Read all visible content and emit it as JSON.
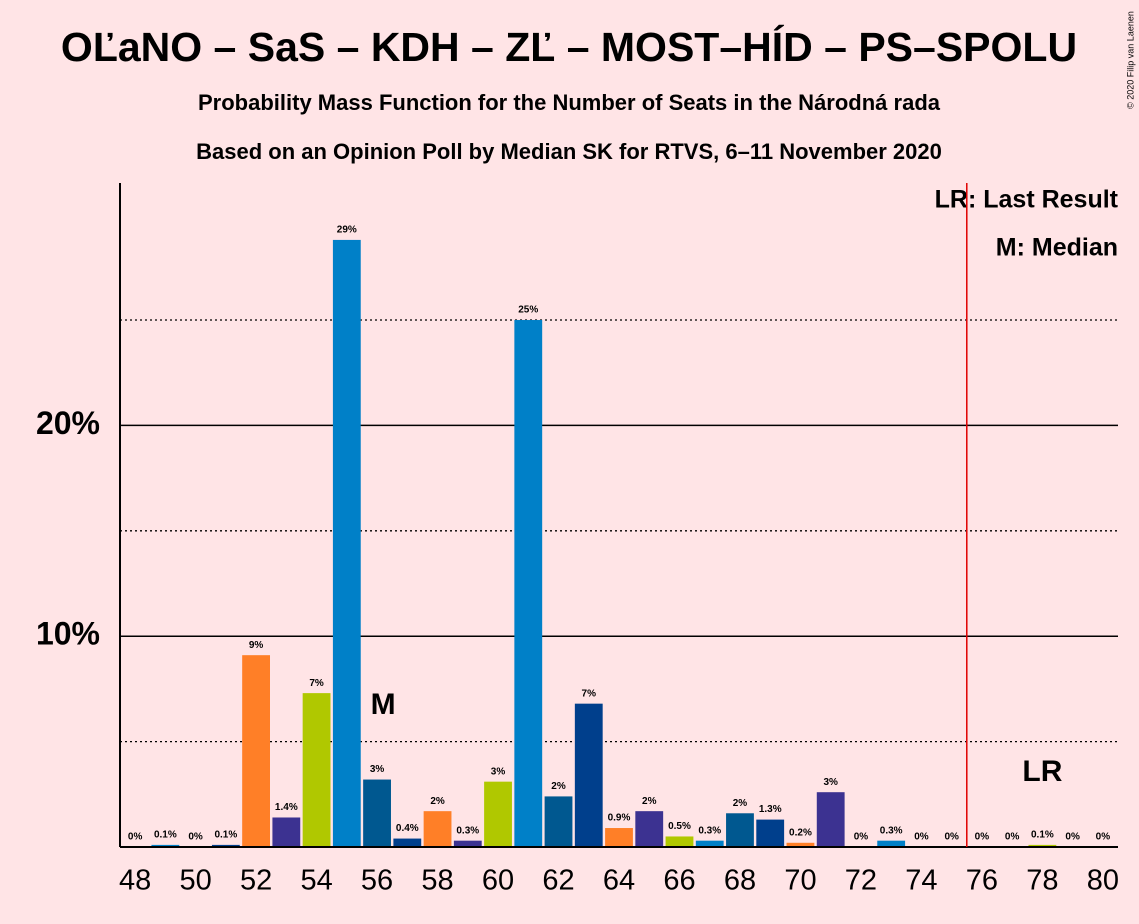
{
  "chart_data": {
    "type": "bar",
    "title": "OĽaNO – SaS – KDH – ZĽ – MOST–HÍD – PS–SPOLU",
    "subtitle": "Probability Mass Function for the Number of Seats in the Národná rada",
    "subtitle2": "Based on an Opinion Poll by Median SK for RTVS, 6–11 November 2020",
    "copyright": "© 2020 Filip van Laenen",
    "legend": [
      "LR: Last Result",
      "M: Median"
    ],
    "x": [
      48,
      49,
      50,
      51,
      52,
      53,
      54,
      55,
      56,
      57,
      58,
      59,
      60,
      61,
      62,
      63,
      64,
      65,
      66,
      67,
      68,
      69,
      70,
      71,
      72,
      73,
      74,
      75,
      76,
      77,
      78,
      79,
      80
    ],
    "values": [
      0,
      0.1,
      0,
      0.1,
      9.1,
      1.4,
      7.3,
      28.8,
      3.2,
      0.4,
      1.7,
      0.3,
      3.1,
      25.0,
      2.4,
      6.8,
      0.9,
      1.7,
      0.5,
      0.3,
      1.6,
      1.3,
      0.2,
      2.6,
      0,
      0.3,
      0,
      0,
      0,
      0,
      0.1,
      0,
      0
    ],
    "value_labels": [
      "0%",
      "0.1%",
      "0%",
      "0.1%",
      "9%",
      "1.4%",
      "7%",
      "29%",
      "3%",
      "0.4%",
      "2%",
      "0.3%",
      "3%",
      "25%",
      "2%",
      "7%",
      "0.9%",
      "2%",
      "0.5%",
      "0.3%",
      "2%",
      "1.3%",
      "0.2%",
      "3%",
      "0%",
      "0.3%",
      "0%",
      "0%",
      "0%",
      "0%",
      "0.1%",
      "0%",
      "0%"
    ],
    "palette": [
      "#B0C800",
      "#0080C8",
      "#005890",
      "#003F8C",
      "#FF7F27",
      "#3C3291"
    ],
    "xlim": [
      47.5,
      80.5
    ],
    "xticks": [
      48,
      50,
      52,
      54,
      56,
      58,
      60,
      62,
      64,
      66,
      68,
      70,
      72,
      74,
      76,
      78,
      80
    ],
    "ylim": [
      0,
      31.5
    ],
    "yticks": [
      {
        "value": 10,
        "label": "10%"
      },
      {
        "value": 20,
        "label": "20%"
      }
    ],
    "minor_yticks": [
      5,
      15,
      25
    ],
    "median": {
      "label": "M",
      "x": 56
    },
    "last_result": {
      "label": "LR",
      "x": 78,
      "line_x": 75.5
    }
  }
}
